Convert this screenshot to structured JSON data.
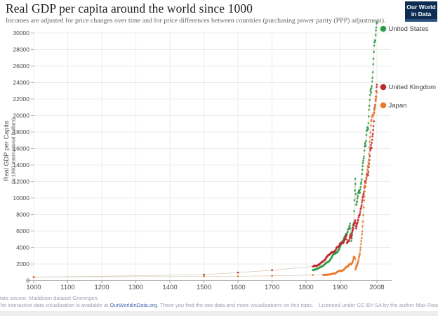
{
  "header": {
    "title": "Real GDP per capita around the world since 1000",
    "subtitle": "Incomes are adjusted for price changes over time and for price differences between countries (purchasing power parity (PPP) adjustment).",
    "logo": {
      "line1": "Our World",
      "line2": "in Data"
    }
  },
  "chart_data": {
    "type": "line",
    "marker": "dot",
    "title": "Real GDP per capita around the world since 1000",
    "ylabel_line1": "Real GDP per Capita",
    "ylabel_line2": "(in 1990 International Dollars)",
    "xlabel": "",
    "x_range": [
      1000,
      2008
    ],
    "y_range": [
      0,
      31500
    ],
    "x_ticks": [
      1000,
      1100,
      1200,
      1300,
      1400,
      1500,
      1600,
      1700,
      1800,
      1900,
      2008
    ],
    "y_ticks": [
      0,
      2000,
      4000,
      6000,
      8000,
      10000,
      12000,
      14000,
      16000,
      18000,
      20000,
      22000,
      24000,
      26000,
      28000,
      30000
    ],
    "grid": true,
    "legend_position": "right",
    "series": [
      {
        "name": "United States",
        "color": "#2e9c47",
        "points": [
          [
            1820,
            1257
          ],
          [
            1825,
            1315
          ],
          [
            1830,
            1376
          ],
          [
            1835,
            1479
          ],
          [
            1840,
            1588
          ],
          [
            1845,
            1687
          ],
          [
            1850,
            1806
          ],
          [
            1855,
            1990
          ],
          [
            1860,
            2178
          ],
          [
            1865,
            2261
          ],
          [
            1870,
            2445
          ],
          [
            1875,
            2790
          ],
          [
            1880,
            3184
          ],
          [
            1885,
            3287
          ],
          [
            1890,
            3392
          ],
          [
            1895,
            3644
          ],
          [
            1900,
            4091
          ],
          [
            1905,
            4642
          ],
          [
            1910,
            4964
          ],
          [
            1913,
            5301
          ],
          [
            1918,
            5659
          ],
          [
            1920,
            5552
          ],
          [
            1923,
            6164
          ],
          [
            1926,
            6343
          ],
          [
            1929,
            6899
          ],
          [
            1931,
            5691
          ],
          [
            1933,
            4777
          ],
          [
            1935,
            5467
          ],
          [
            1937,
            6430
          ],
          [
            1940,
            7010
          ],
          [
            1942,
            9741
          ],
          [
            1944,
            12333
          ],
          [
            1945,
            11709
          ],
          [
            1947,
            9197
          ],
          [
            1950,
            9561
          ],
          [
            1953,
            10613
          ],
          [
            1955,
            10897
          ],
          [
            1958,
            10631
          ],
          [
            1960,
            11328
          ],
          [
            1963,
            12242
          ],
          [
            1965,
            13419
          ],
          [
            1968,
            14507
          ],
          [
            1970,
            15030
          ],
          [
            1973,
            16689
          ],
          [
            1975,
            16284
          ],
          [
            1978,
            18134
          ],
          [
            1980,
            18577
          ],
          [
            1982,
            18325
          ],
          [
            1985,
            20717
          ],
          [
            1988,
            22499
          ],
          [
            1990,
            23201
          ],
          [
            1991,
            22785
          ],
          [
            1994,
            24130
          ],
          [
            1997,
            26210
          ],
          [
            2000,
            28467
          ],
          [
            2003,
            29037
          ],
          [
            2005,
            30295
          ],
          [
            2007,
            31357
          ],
          [
            2008,
            31178
          ]
        ]
      },
      {
        "name": "United Kingdom",
        "color": "#c2272e",
        "points": [
          [
            1000,
            400
          ],
          [
            1500,
            714
          ],
          [
            1600,
            974
          ],
          [
            1700,
            1250
          ],
          [
            1820,
            1706
          ],
          [
            1825,
            1816
          ],
          [
            1830,
            1749
          ],
          [
            1835,
            1878
          ],
          [
            1840,
            1990
          ],
          [
            1845,
            2202
          ],
          [
            1850,
            2330
          ],
          [
            1855,
            2471
          ],
          [
            1860,
            2830
          ],
          [
            1865,
            3061
          ],
          [
            1870,
            3190
          ],
          [
            1875,
            3434
          ],
          [
            1880,
            3477
          ],
          [
            1885,
            3574
          ],
          [
            1890,
            4009
          ],
          [
            1895,
            4118
          ],
          [
            1900,
            4492
          ],
          [
            1905,
            4520
          ],
          [
            1910,
            4611
          ],
          [
            1913,
            4921
          ],
          [
            1916,
            5308
          ],
          [
            1918,
            5459
          ],
          [
            1920,
            4548
          ],
          [
            1923,
            4760
          ],
          [
            1926,
            4813
          ],
          [
            1929,
            5503
          ],
          [
            1932,
            5169
          ],
          [
            1935,
            5799
          ],
          [
            1938,
            6266
          ],
          [
            1941,
            6856
          ],
          [
            1944,
            7307
          ],
          [
            1947,
            6308
          ],
          [
            1950,
            6939
          ],
          [
            1953,
            7346
          ],
          [
            1955,
            7868
          ],
          [
            1958,
            8090
          ],
          [
            1960,
            8645
          ],
          [
            1963,
            9149
          ],
          [
            1965,
            9752
          ],
          [
            1968,
            10410
          ],
          [
            1970,
            10767
          ],
          [
            1973,
            12025
          ],
          [
            1975,
            11847
          ],
          [
            1978,
            12826
          ],
          [
            1980,
            12931
          ],
          [
            1982,
            12747
          ],
          [
            1985,
            14165
          ],
          [
            1988,
            15771
          ],
          [
            1990,
            16430
          ],
          [
            1992,
            16070
          ],
          [
            1995,
            17495
          ],
          [
            1998,
            18714
          ],
          [
            2000,
            20353
          ],
          [
            2003,
            21310
          ],
          [
            2005,
            22296
          ],
          [
            2007,
            23460
          ],
          [
            2008,
            23742
          ]
        ]
      },
      {
        "name": "Japan",
        "color": "#e87a2d",
        "points": [
          [
            1000,
            425
          ],
          [
            1500,
            500
          ],
          [
            1600,
            520
          ],
          [
            1700,
            570
          ],
          [
            1820,
            669
          ],
          [
            1850,
            679
          ],
          [
            1860,
            696
          ],
          [
            1870,
            737
          ],
          [
            1875,
            800
          ],
          [
            1880,
            863
          ],
          [
            1885,
            835
          ],
          [
            1890,
            1012
          ],
          [
            1895,
            1132
          ],
          [
            1900,
            1180
          ],
          [
            1905,
            1157
          ],
          [
            1910,
            1301
          ],
          [
            1913,
            1387
          ],
          [
            1916,
            1558
          ],
          [
            1918,
            1668
          ],
          [
            1920,
            1696
          ],
          [
            1923,
            1713
          ],
          [
            1926,
            1924
          ],
          [
            1929,
            2026
          ],
          [
            1932,
            1962
          ],
          [
            1935,
            2120
          ],
          [
            1938,
            2449
          ],
          [
            1940,
            2874
          ],
          [
            1942,
            2818
          ],
          [
            1944,
            2659
          ],
          [
            1945,
            1346
          ],
          [
            1946,
            1444
          ],
          [
            1948,
            1725
          ],
          [
            1950,
            1921
          ],
          [
            1953,
            2277
          ],
          [
            1955,
            2771
          ],
          [
            1958,
            3290
          ],
          [
            1960,
            3986
          ],
          [
            1962,
            4778
          ],
          [
            1965,
            5934
          ],
          [
            1967,
            7152
          ],
          [
            1970,
            9714
          ],
          [
            1973,
            11434
          ],
          [
            1975,
            11344
          ],
          [
            1978,
            12585
          ],
          [
            1980,
            13428
          ],
          [
            1983,
            14308
          ],
          [
            1985,
            15331
          ],
          [
            1988,
            17387
          ],
          [
            1990,
            18789
          ],
          [
            1992,
            19478
          ],
          [
            1995,
            19979
          ],
          [
            1998,
            20084
          ],
          [
            2000,
            20738
          ],
          [
            2003,
            21218
          ],
          [
            2005,
            22016
          ],
          [
            2007,
            22886
          ],
          [
            2008,
            22816
          ]
        ]
      }
    ]
  },
  "footer": {
    "line1": "Data source: Maddison dataset Groningen.",
    "line2_prefix": "The interactive data visualization is available at ",
    "line2_link": "OurWorldinData.org",
    "line2_suffix": ". There you find the raw data and more visualizations on this topic.",
    "license": "Licensed under CC-BY-SA by the author Max Roser"
  }
}
